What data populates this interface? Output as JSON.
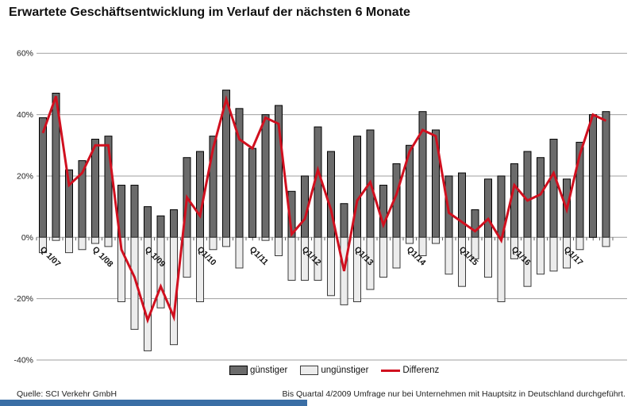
{
  "title": "Erwartete Geschäftsentwicklung im Verlauf der nächsten 6 Monate",
  "legend": {
    "guenstiger_label": "günstiger",
    "unguenstiger_label": "ungünstiger",
    "differenz_label": "Differenz"
  },
  "footer": {
    "source": "Quelle: SCI Verkehr GmbH",
    "note": "Bis Quartal 4/2009 Umfrage nur bei Unternehmen mit Hauptsitz in Deutschland durchgeführt."
  },
  "colors": {
    "guenstiger": "#6b6b6b",
    "guenstiger_border": "#000000",
    "unguenstiger": "#ececec",
    "unguenstiger_border": "#3a3a3a",
    "differenz": "#d0101f",
    "grid": "#9f9f9f",
    "tick": "#666666",
    "axis_text": "#222222",
    "accent_bar": "#3a6ea5"
  },
  "chart_data": {
    "type": "bar",
    "title": "Erwartete Geschäftsentwicklung im Verlauf der nächsten 6 Monate",
    "xlabel": "",
    "ylabel": "",
    "ylim": [
      -40,
      60
    ],
    "grid": true,
    "legend_position": "bottom",
    "yticks": [
      {
        "value": 60,
        "label": "60%"
      },
      {
        "value": 40,
        "label": "40%"
      },
      {
        "value": 20,
        "label": "20%"
      },
      {
        "value": 0,
        "label": "0%"
      },
      {
        "value": -20,
        "label": "-20%"
      },
      {
        "value": -40,
        "label": "-40%"
      }
    ],
    "categories": [
      "Q1/07",
      "Q2/07",
      "Q3/07",
      "Q4/07",
      "Q1/08",
      "Q2/08",
      "Q3/08",
      "Q4/08",
      "Q1/09",
      "Q2/09",
      "Q3/09",
      "Q4/09",
      "Q1/10",
      "Q2/10",
      "Q3/10",
      "Q4/10",
      "Q1/11",
      "Q2/11",
      "Q3/11",
      "Q4/11",
      "Q1/12",
      "Q2/12",
      "Q3/12",
      "Q4/12",
      "Q1/13",
      "Q2/13",
      "Q3/13",
      "Q4/13",
      "Q1/14",
      "Q2/14",
      "Q3/14",
      "Q4/14",
      "Q1/15",
      "Q2/15",
      "Q3/15",
      "Q4/15",
      "Q1/16",
      "Q2/16",
      "Q3/16",
      "Q4/16",
      "Q1/17",
      "Q2/17",
      "Q3/17",
      "Q4/17"
    ],
    "x_tick_labels": [
      {
        "index": 0,
        "label": "Q 1/07"
      },
      {
        "index": 4,
        "label": "Q 1/08"
      },
      {
        "index": 8,
        "label": "Q 1/09"
      },
      {
        "index": 12,
        "label": "Q1/10"
      },
      {
        "index": 16,
        "label": "Q1/11"
      },
      {
        "index": 20,
        "label": "Q1/12"
      },
      {
        "index": 24,
        "label": "Q1/13"
      },
      {
        "index": 28,
        "label": "Q1/14"
      },
      {
        "index": 32,
        "label": "Q1/15"
      },
      {
        "index": 36,
        "label": "Q1/16"
      },
      {
        "index": 40,
        "label": "Q1/17"
      }
    ],
    "series": [
      {
        "name": "günstiger",
        "type": "bar",
        "values": [
          39,
          47,
          22,
          25,
          32,
          33,
          17,
          17,
          10,
          7,
          9,
          26,
          28,
          33,
          48,
          42,
          29,
          40,
          43,
          15,
          20,
          36,
          28,
          11,
          33,
          35,
          17,
          24,
          30,
          41,
          35,
          20,
          21,
          9,
          19,
          20,
          24,
          28,
          26,
          32,
          19,
          31,
          40,
          41
        ]
      },
      {
        "name": "ungünstiger",
        "type": "bar",
        "values": [
          -5,
          -1,
          -5,
          -4,
          -2,
          -3,
          -21,
          -30,
          -37,
          -23,
          -35,
          -13,
          -21,
          -4,
          -3,
          -10,
          0,
          -1,
          -6,
          -14,
          -14,
          -14,
          -19,
          -22,
          -21,
          -17,
          -13,
          -10,
          -2,
          -6,
          -2,
          -12,
          -16,
          -7,
          -13,
          -21,
          -7,
          -16,
          -12,
          -11,
          -10,
          -4,
          0,
          -3
        ]
      },
      {
        "name": "Differenz",
        "type": "line",
        "values": [
          34,
          46,
          17,
          21,
          30,
          30,
          -4,
          -13,
          -27,
          -16,
          -26,
          13,
          7,
          29,
          45,
          32,
          29,
          39,
          37,
          1,
          6,
          22,
          9,
          -11,
          12,
          18,
          4,
          14,
          28,
          35,
          33,
          8,
          5,
          2,
          6,
          -1,
          17,
          12,
          14,
          21,
          9,
          27,
          40,
          38
        ]
      }
    ]
  }
}
